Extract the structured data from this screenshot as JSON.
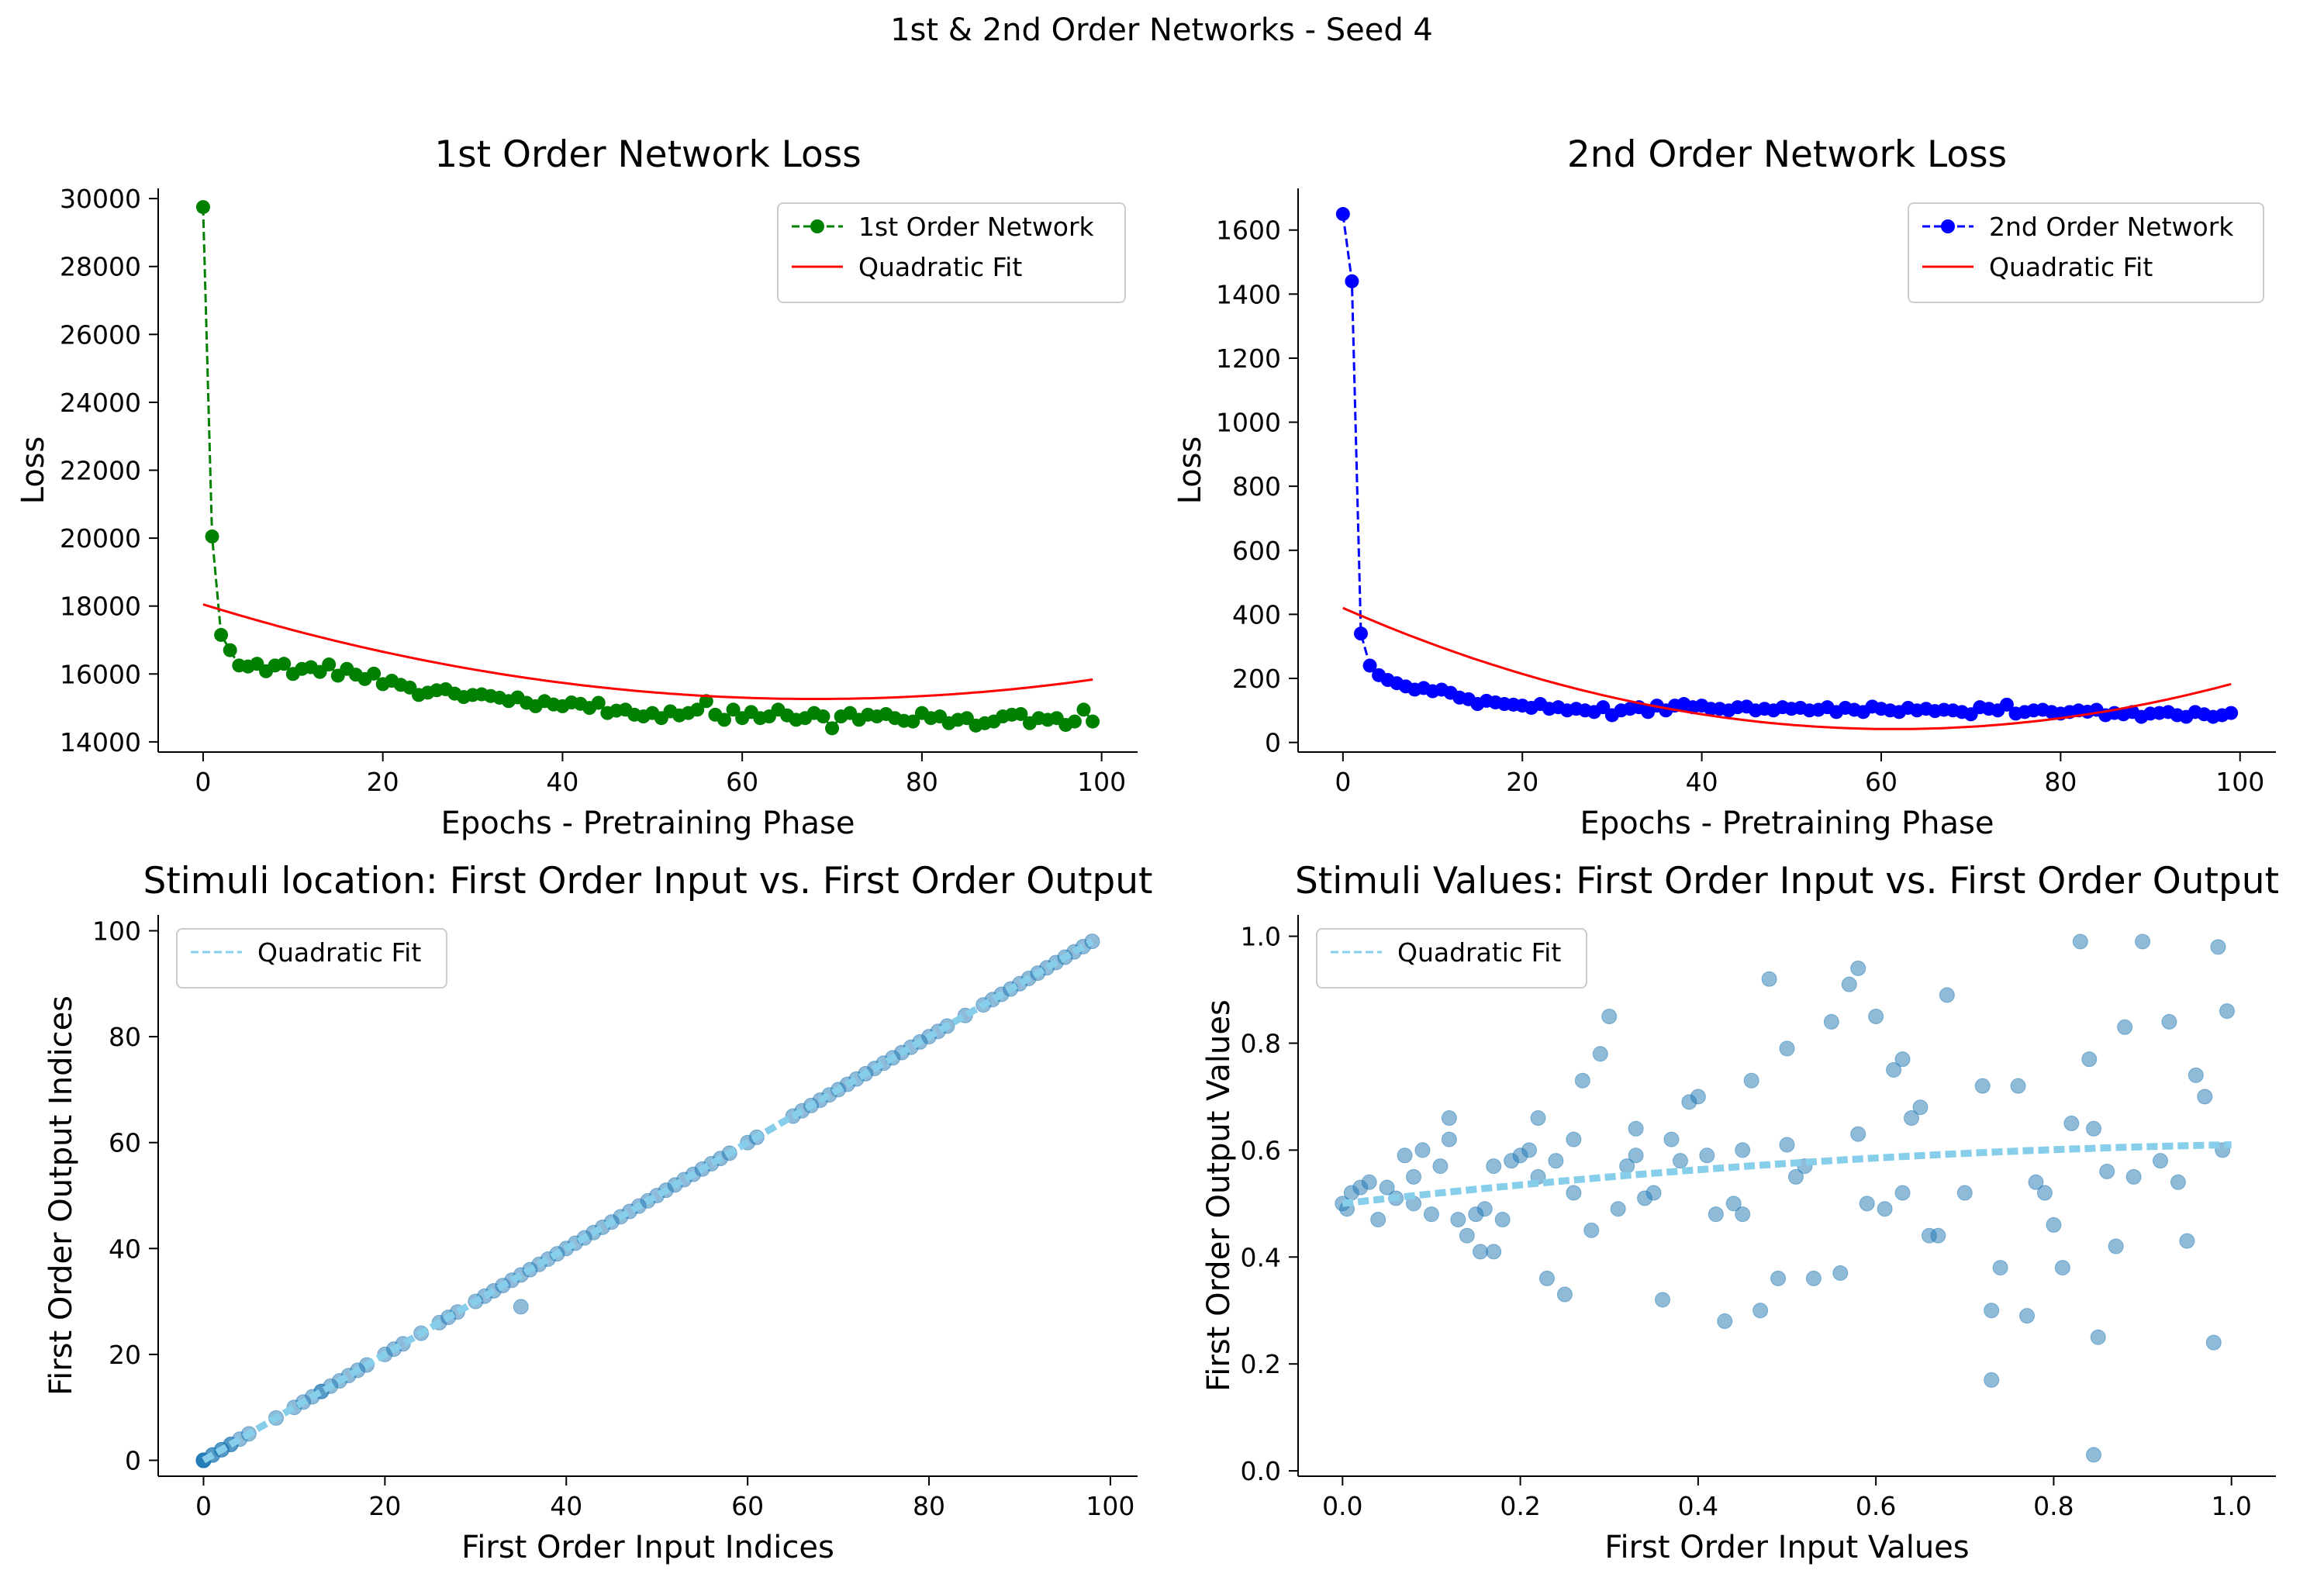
{
  "figure": {
    "suptitle": "1st & 2nd Order Networks - Seed 4"
  },
  "chart_data": [
    {
      "type": "line",
      "title": "1st Order Network Loss",
      "xlabel": "Epochs - Pretraining Phase",
      "ylabel": "Loss",
      "xlim": [
        -5,
        104
      ],
      "ylim": [
        13700,
        30300
      ],
      "xticks": [
        0,
        20,
        40,
        60,
        80,
        100
      ],
      "yticks": [
        14000,
        16000,
        18000,
        20000,
        22000,
        24000,
        26000,
        28000,
        30000
      ],
      "legend_loc": "upper right",
      "series": [
        {
          "name": "1st Order Network",
          "color": "#008000",
          "style": "dashed",
          "marker": "o",
          "x_start": 0,
          "y": [
            29750,
            20050,
            17150,
            16700,
            16250,
            16220,
            16300,
            16080,
            16250,
            16300,
            16000,
            16150,
            16200,
            16060,
            16280,
            15950,
            16150,
            15980,
            15850,
            16010,
            15700,
            15800,
            15680,
            15600,
            15380,
            15450,
            15520,
            15550,
            15420,
            15320,
            15380,
            15400,
            15350,
            15300,
            15200,
            15310,
            15150,
            15050,
            15200,
            15100,
            15050,
            15160,
            15120,
            15000,
            15150,
            14850,
            14920,
            14950,
            14800,
            14750,
            14850,
            14700,
            14900,
            14780,
            14850,
            14950,
            15200,
            14800,
            14650,
            14950,
            14700,
            14880,
            14700,
            14750,
            14950,
            14780,
            14650,
            14700,
            14850,
            14750,
            14400,
            14750,
            14850,
            14650,
            14800,
            14750,
            14820,
            14700,
            14620,
            14600,
            14850,
            14700,
            14750,
            14550,
            14650,
            14700,
            14480,
            14550,
            14600,
            14750,
            14800,
            14820,
            14550,
            14700,
            14650,
            14700,
            14500,
            14600,
            14950,
            14600
          ]
        },
        {
          "name": "Quadratic Fit",
          "color": "#ff0000",
          "fit": {
            "a": 0.6,
            "b": -81.78,
            "c": 18050
          },
          "x_range": [
            0,
            99
          ]
        }
      ]
    },
    {
      "type": "line",
      "title": "2nd Order Network Loss",
      "xlabel": "Epochs - Pretraining Phase",
      "ylabel": "Loss",
      "xlim": [
        -5,
        104
      ],
      "ylim": [
        -30,
        1730
      ],
      "xticks": [
        0,
        20,
        40,
        60,
        80,
        100
      ],
      "yticks": [
        0,
        200,
        400,
        600,
        800,
        1000,
        1200,
        1400,
        1600
      ],
      "legend_loc": "upper right",
      "series": [
        {
          "name": "2nd Order Network",
          "color": "#0000ff",
          "style": "dashed",
          "marker": "o",
          "x_start": 0,
          "y": [
            1650,
            1440,
            340,
            240,
            210,
            195,
            185,
            175,
            165,
            170,
            160,
            165,
            155,
            140,
            135,
            120,
            130,
            125,
            120,
            118,
            115,
            108,
            120,
            105,
            110,
            100,
            105,
            100,
            95,
            110,
            85,
            100,
            105,
            110,
            95,
            115,
            100,
            115,
            120,
            110,
            115,
            105,
            105,
            100,
            110,
            112,
            100,
            105,
            100,
            110,
            105,
            108,
            100,
            102,
            110,
            95,
            108,
            102,
            95,
            112,
            105,
            100,
            95,
            108,
            100,
            105,
            98,
            102,
            100,
            95,
            88,
            110,
            105,
            100,
            118,
            90,
            95,
            100,
            102,
            95,
            90,
            95,
            100,
            96,
            102,
            85,
            92,
            88,
            95,
            80,
            90,
            92,
            95,
            85,
            80,
            95,
            88,
            80,
            85,
            92
          ]
        },
        {
          "name": "Quadratic Fit",
          "color": "#ff0000",
          "fit": {
            "a": 0.1,
            "b": -12.3,
            "c": 420
          },
          "x_range": [
            0,
            99
          ]
        }
      ]
    },
    {
      "type": "scatter",
      "title": "Stimuli location: First Order Input vs. First Order Output",
      "xlabel": "First Order Input Indices",
      "ylabel": "First Order Output Indices",
      "xlim": [
        -5,
        103
      ],
      "ylim": [
        -3,
        103
      ],
      "xticks": [
        0,
        20,
        40,
        60,
        80,
        100
      ],
      "yticks": [
        0,
        20,
        40,
        60,
        80,
        100
      ],
      "legend_loc": "upper left",
      "series": [
        {
          "name": "",
          "color": "#1f77b4",
          "opacity": 0.5,
          "x": [
            0,
            0,
            0,
            0,
            0,
            1,
            1,
            2,
            2,
            3,
            3,
            4,
            5,
            8,
            10,
            11,
            12,
            13,
            13,
            14,
            15,
            16,
            17,
            18,
            20,
            21,
            22,
            24,
            26,
            27,
            28,
            30,
            31,
            32,
            33,
            34,
            35,
            35,
            36,
            37,
            38,
            39,
            40,
            41,
            42,
            43,
            44,
            45,
            46,
            47,
            48,
            49,
            50,
            51,
            52,
            53,
            54,
            55,
            56,
            57,
            58,
            60,
            61,
            65,
            66,
            67,
            68,
            69,
            70,
            71,
            72,
            73,
            74,
            75,
            76,
            77,
            78,
            79,
            80,
            81,
            82,
            84,
            86,
            87,
            88,
            89,
            90,
            91,
            92,
            93,
            94,
            95,
            96,
            97,
            98
          ],
          "y": [
            0,
            0,
            0,
            0,
            0,
            1,
            1,
            2,
            2,
            3,
            3,
            4,
            5,
            8,
            10,
            11,
            12,
            13,
            13,
            14,
            15,
            16,
            17,
            18,
            20,
            21,
            22,
            24,
            26,
            27,
            28,
            30,
            31,
            32,
            33,
            34,
            29,
            35,
            36,
            37,
            38,
            39,
            40,
            41,
            42,
            43,
            44,
            45,
            46,
            47,
            48,
            49,
            50,
            51,
            52,
            53,
            54,
            55,
            56,
            57,
            58,
            60,
            61,
            65,
            66,
            67,
            68,
            69,
            70,
            71,
            72,
            73,
            74,
            75,
            76,
            77,
            78,
            79,
            80,
            81,
            82,
            84,
            86,
            87,
            88,
            89,
            90,
            91,
            92,
            93,
            94,
            95,
            96,
            97,
            98
          ]
        },
        {
          "name": "Quadratic Fit",
          "color": "#87ceeb",
          "style": "dashed",
          "fit": {
            "a": 0,
            "b": 1.0,
            "c": 0
          },
          "x_range": [
            0,
            98
          ]
        }
      ]
    },
    {
      "type": "scatter",
      "title": "Stimuli Values: First Order Input vs. First Order Output",
      "xlabel": "First Order Input Values",
      "ylabel": "First Order Output Values",
      "xlim": [
        -0.05,
        1.05
      ],
      "ylim": [
        -0.01,
        1.04
      ],
      "xticks": [
        0.0,
        0.2,
        0.4,
        0.6,
        0.8,
        1.0
      ],
      "yticks": [
        0.0,
        0.2,
        0.4,
        0.6,
        0.8,
        1.0
      ],
      "legend_loc": "upper left",
      "series": [
        {
          "name": "",
          "color": "#1f77b4",
          "opacity": 0.5,
          "x": [
            0.0,
            0.005,
            0.01,
            0.02,
            0.03,
            0.04,
            0.05,
            0.06,
            0.07,
            0.08,
            0.09,
            0.1,
            0.11,
            0.12,
            0.13,
            0.14,
            0.15,
            0.155,
            0.16,
            0.17,
            0.18,
            0.19,
            0.2,
            0.21,
            0.22,
            0.23,
            0.24,
            0.25,
            0.26,
            0.27,
            0.28,
            0.29,
            0.3,
            0.31,
            0.32,
            0.33,
            0.34,
            0.35,
            0.36,
            0.37,
            0.38,
            0.39,
            0.4,
            0.41,
            0.43,
            0.44,
            0.45,
            0.46,
            0.47,
            0.48,
            0.49,
            0.5,
            0.51,
            0.53,
            0.55,
            0.56,
            0.57,
            0.58,
            0.59,
            0.6,
            0.61,
            0.62,
            0.63,
            0.64,
            0.65,
            0.66,
            0.68,
            0.7,
            0.72,
            0.73,
            0.74,
            0.76,
            0.77,
            0.78,
            0.8,
            0.81,
            0.82,
            0.83,
            0.84,
            0.85,
            0.86,
            0.88,
            0.89,
            0.9,
            0.92,
            0.93,
            0.95,
            0.96,
            0.97,
            0.98,
            0.99,
            0.995,
            0.08,
            0.12,
            0.17,
            0.22,
            0.26,
            0.33,
            0.45,
            0.52,
            0.58,
            0.67,
            0.73,
            0.79,
            0.87,
            0.94,
            0.845,
            0.845,
            0.985,
            0.5,
            0.42,
            0.63
          ],
          "y": [
            0.5,
            0.49,
            0.52,
            0.53,
            0.54,
            0.47,
            0.53,
            0.51,
            0.59,
            0.5,
            0.6,
            0.48,
            0.57,
            0.66,
            0.47,
            0.44,
            0.48,
            0.41,
            0.49,
            0.57,
            0.47,
            0.58,
            0.59,
            0.6,
            0.66,
            0.36,
            0.58,
            0.33,
            0.62,
            0.73,
            0.45,
            0.78,
            0.85,
            0.49,
            0.57,
            0.64,
            0.51,
            0.52,
            0.32,
            0.62,
            0.58,
            0.69,
            0.7,
            0.59,
            0.28,
            0.5,
            0.48,
            0.73,
            0.3,
            0.92,
            0.36,
            0.79,
            0.55,
            0.36,
            0.84,
            0.37,
            0.91,
            0.94,
            0.5,
            0.85,
            0.49,
            0.75,
            0.77,
            0.66,
            0.68,
            0.44,
            0.89,
            0.52,
            0.72,
            0.17,
            0.38,
            0.72,
            0.29,
            0.54,
            0.46,
            0.38,
            0.65,
            0.99,
            0.77,
            0.25,
            0.56,
            0.83,
            0.55,
            0.99,
            0.58,
            0.84,
            0.43,
            0.74,
            0.7,
            0.24,
            0.6,
            0.86,
            0.55,
            0.62,
            0.41,
            0.55,
            0.52,
            0.59,
            0.6,
            0.57,
            0.63,
            0.44,
            0.3,
            0.52,
            0.42,
            0.54,
            0.03,
            0.64,
            0.98,
            0.61,
            0.48,
            0.52
          ]
        },
        {
          "name": "Quadratic Fit",
          "color": "#87ceeb",
          "style": "dashed",
          "fit": {
            "a": -0.08,
            "b": 0.19,
            "c": 0.5
          },
          "x_range": [
            0,
            1
          ]
        }
      ]
    }
  ]
}
